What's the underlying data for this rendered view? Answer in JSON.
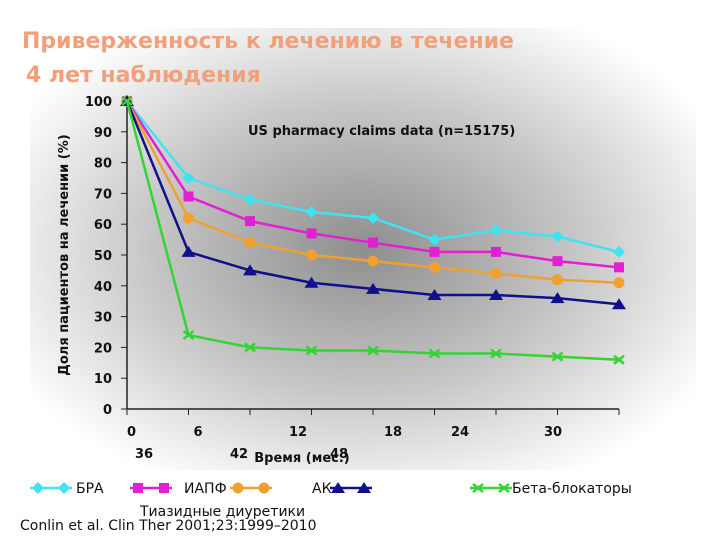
{
  "chart_data": {
    "type": "line",
    "title": "Приверженность к лечению в течение 4 лет наблюдения",
    "title_lines": [
      "Приверженность к лечению в течение",
      "4 лет наблюдения"
    ],
    "annotation": "US pharmacy claims data (n=15175)",
    "y_label": "Доля пациентов на лечении (%)",
    "x_label": "Время (мес.)",
    "source": "Conlin et al. Clin Ther 2001;23:1999–2010",
    "x": [
      0,
      6,
      12,
      18,
      24,
      30,
      36,
      42,
      48
    ],
    "xlim": [
      0,
      48
    ],
    "xticks": [
      0,
      6,
      12,
      18,
      24,
      30,
      36,
      42,
      48
    ],
    "ylim": [
      0,
      100
    ],
    "yticks": [
      0,
      10,
      20,
      30,
      40,
      50,
      60,
      70,
      80,
      90,
      100
    ],
    "series": [
      {
        "name": "БРА",
        "color": "#3fe3f2",
        "marker": "diamond",
        "values": [
          100,
          75,
          68,
          64,
          62,
          55,
          58,
          56,
          51
        ]
      },
      {
        "name": "ИАПФ",
        "color": "#e21fd2",
        "marker": "square",
        "values": [
          100,
          69,
          61,
          57,
          54,
          51,
          51,
          48,
          46
        ]
      },
      {
        "name": "АК",
        "color": "#f0a030",
        "marker": "circle",
        "values": [
          100,
          62,
          54,
          50,
          48,
          46,
          44,
          42,
          41
        ]
      },
      {
        "name": "Тиазидные диуретики",
        "color": "#10108a",
        "marker": "triangle",
        "values": [
          100,
          51,
          45,
          41,
          39,
          37,
          37,
          36,
          34
        ]
      },
      {
        "name": "Бета-блокаторы",
        "color": "#33d433",
        "marker": "x",
        "values": [
          100,
          24,
          20,
          19,
          19,
          18,
          18,
          17,
          16
        ]
      }
    ]
  }
}
